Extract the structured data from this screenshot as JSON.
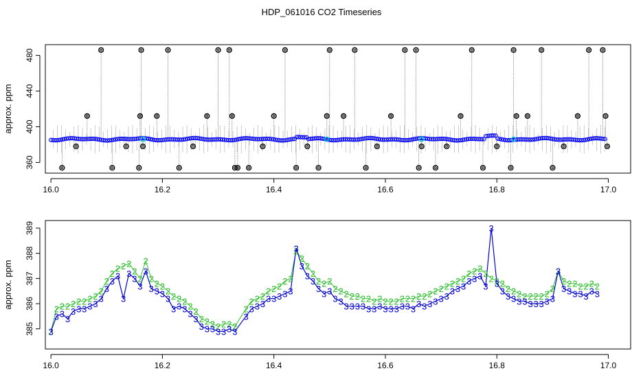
{
  "title": "HDP_061016  CO2 Timeseries",
  "chart_data": [
    {
      "type": "scatter",
      "ylabel": "approx. ppm",
      "xlim": [
        15.99,
        17.04
      ],
      "ylim": [
        348,
        492
      ],
      "x_ticks": [
        "16.0",
        "16.2",
        "16.4",
        "16.6",
        "16.8",
        "17.0"
      ],
      "y_ticks": [
        "360",
        "400",
        "440",
        "480"
      ],
      "baseline": {
        "color": "#0000ff",
        "approx_ppm": 386
      },
      "spikes": {
        "color": "#000000",
        "x": [
          16.02,
          16.045,
          16.065,
          16.09,
          16.11,
          16.135,
          16.158,
          16.16,
          16.162,
          16.165,
          16.19,
          16.21,
          16.23,
          16.255,
          16.28,
          16.3,
          16.32,
          16.325,
          16.33,
          16.335,
          16.355,
          16.38,
          16.4,
          16.42,
          16.44,
          16.46,
          16.48,
          16.495,
          16.5,
          16.525,
          16.545,
          16.565,
          16.585,
          16.61,
          16.635,
          16.655,
          16.66,
          16.665,
          16.69,
          16.71,
          16.735,
          16.755,
          16.775,
          16.8,
          16.825,
          16.83,
          16.835,
          16.855,
          16.88,
          16.9,
          16.92,
          16.945,
          16.965,
          16.99,
          16.995,
          16.998
        ],
        "y": [
          354,
          378,
          412,
          486,
          354,
          378,
          354,
          412,
          486,
          378,
          412,
          486,
          354,
          378,
          412,
          486,
          486,
          412,
          354,
          354,
          354,
          378,
          412,
          486,
          354,
          378,
          354,
          412,
          486,
          412,
          486,
          354,
          378,
          412,
          486,
          486,
          354,
          378,
          354,
          378,
          412,
          486,
          354,
          378,
          354,
          486,
          412,
          412,
          486,
          354,
          378,
          412,
          486,
          486,
          412,
          378
        ]
      },
      "cyan_markers": {
        "color": "#00cccc",
        "x": [
          16.165,
          16.495,
          16.665,
          16.83
        ]
      }
    },
    {
      "type": "line",
      "ylabel": "approx. ppm",
      "xlim": [
        15.99,
        17.04
      ],
      "ylim": [
        384.2,
        389.3
      ],
      "x_ticks": [
        "16.0",
        "16.2",
        "16.4",
        "16.6",
        "16.8",
        "17.0"
      ],
      "y_ticks": [
        "385",
        "386",
        "387",
        "388",
        "389"
      ],
      "series": [
        {
          "marker": "2",
          "color": "#22bb22",
          "x": [
            16.0,
            16.01,
            16.02,
            16.03,
            16.04,
            16.05,
            16.06,
            16.07,
            16.08,
            16.09,
            16.1,
            16.11,
            16.12,
            16.13,
            16.14,
            16.15,
            16.16,
            16.17,
            16.18,
            16.19,
            16.2,
            16.21,
            16.22,
            16.23,
            16.24,
            16.25,
            16.26,
            16.27,
            16.28,
            16.29,
            16.3,
            16.31,
            16.32,
            16.33,
            16.35,
            16.36,
            16.37,
            16.38,
            16.39,
            16.4,
            16.41,
            16.42,
            16.43,
            16.44,
            16.45,
            16.46,
            16.47,
            16.48,
            16.49,
            16.5,
            16.51,
            16.52,
            16.53,
            16.54,
            16.55,
            16.56,
            16.57,
            16.58,
            16.59,
            16.6,
            16.61,
            16.62,
            16.63,
            16.64,
            16.65,
            16.66,
            16.67,
            16.68,
            16.69,
            16.7,
            16.71,
            16.72,
            16.73,
            16.74,
            16.75,
            16.76,
            16.77,
            16.78,
            16.79,
            16.8,
            16.81,
            16.82,
            16.83,
            16.84,
            16.85,
            16.86,
            16.87,
            16.88,
            16.89,
            16.9,
            16.91,
            16.92,
            16.93,
            16.94,
            16.95,
            16.96,
            16.97,
            16.98
          ],
          "y": [
            384.9,
            385.8,
            385.9,
            385.9,
            386.0,
            386.1,
            386.1,
            386.2,
            386.3,
            386.5,
            386.9,
            387.2,
            387.4,
            387.5,
            387.6,
            387.3,
            387.0,
            387.7,
            387.0,
            386.8,
            386.7,
            386.5,
            386.3,
            386.2,
            386.1,
            385.9,
            385.7,
            385.4,
            385.3,
            385.2,
            385.1,
            385.2,
            385.2,
            385.1,
            385.8,
            386.1,
            386.2,
            386.3,
            386.5,
            386.6,
            386.7,
            386.9,
            387.0,
            388.1,
            387.8,
            387.5,
            387.2,
            386.9,
            386.8,
            386.9,
            386.6,
            386.5,
            386.4,
            386.3,
            386.3,
            386.2,
            386.2,
            386.1,
            386.2,
            386.1,
            386.1,
            386.1,
            386.2,
            386.2,
            386.2,
            386.3,
            386.3,
            386.4,
            386.5,
            386.6,
            386.7,
            386.8,
            386.9,
            387.0,
            387.2,
            387.3,
            387.4,
            387.2,
            387.0,
            386.9,
            386.8,
            386.6,
            386.5,
            386.4,
            386.3,
            386.3,
            386.3,
            386.3,
            386.4,
            386.6,
            387.3,
            386.9,
            386.8,
            386.8,
            386.7,
            386.7,
            386.8,
            386.7
          ]
        },
        {
          "marker": "3",
          "color": "#0000cc",
          "x": [
            16.0,
            16.01,
            16.02,
            16.03,
            16.04,
            16.05,
            16.06,
            16.07,
            16.08,
            16.09,
            16.1,
            16.11,
            16.12,
            16.13,
            16.14,
            16.15,
            16.16,
            16.17,
            16.18,
            16.19,
            16.2,
            16.21,
            16.22,
            16.23,
            16.24,
            16.25,
            16.26,
            16.27,
            16.28,
            16.29,
            16.3,
            16.31,
            16.32,
            16.33,
            16.35,
            16.36,
            16.37,
            16.38,
            16.39,
            16.4,
            16.41,
            16.42,
            16.43,
            16.44,
            16.45,
            16.46,
            16.47,
            16.48,
            16.49,
            16.5,
            16.51,
            16.52,
            16.53,
            16.54,
            16.55,
            16.56,
            16.57,
            16.58,
            16.59,
            16.6,
            16.61,
            16.62,
            16.63,
            16.64,
            16.65,
            16.66,
            16.67,
            16.68,
            16.69,
            16.7,
            16.71,
            16.72,
            16.73,
            16.74,
            16.75,
            16.76,
            16.77,
            16.78,
            16.79,
            16.8,
            16.81,
            16.82,
            16.83,
            16.84,
            16.85,
            16.86,
            16.87,
            16.88,
            16.89,
            16.9,
            16.91,
            16.92,
            16.93,
            16.94,
            16.95,
            16.96,
            16.97,
            16.98
          ],
          "y": [
            384.9,
            385.5,
            385.6,
            385.4,
            385.7,
            385.8,
            385.8,
            385.9,
            386.0,
            386.2,
            386.6,
            386.9,
            387.1,
            386.2,
            387.2,
            387.0,
            386.7,
            387.3,
            386.6,
            386.5,
            386.4,
            386.2,
            385.8,
            385.9,
            385.8,
            385.6,
            385.4,
            385.1,
            385.0,
            385.0,
            384.9,
            384.9,
            385.0,
            384.9,
            385.5,
            385.8,
            385.9,
            386.0,
            386.2,
            386.2,
            386.3,
            386.4,
            386.5,
            388.2,
            387.5,
            387.1,
            386.9,
            386.6,
            386.4,
            386.5,
            386.2,
            386.1,
            385.9,
            385.9,
            385.9,
            385.9,
            385.8,
            385.8,
            385.9,
            385.8,
            385.8,
            385.8,
            385.9,
            385.9,
            385.8,
            386.0,
            385.9,
            386.0,
            386.1,
            386.2,
            386.3,
            386.5,
            386.6,
            386.7,
            386.9,
            387.0,
            387.1,
            386.7,
            389.0,
            386.8,
            386.5,
            386.3,
            386.2,
            386.1,
            386.1,
            386.0,
            386.0,
            386.0,
            386.1,
            386.2,
            387.3,
            386.6,
            386.5,
            386.4,
            386.4,
            386.3,
            386.5,
            386.4
          ]
        }
      ]
    }
  ]
}
